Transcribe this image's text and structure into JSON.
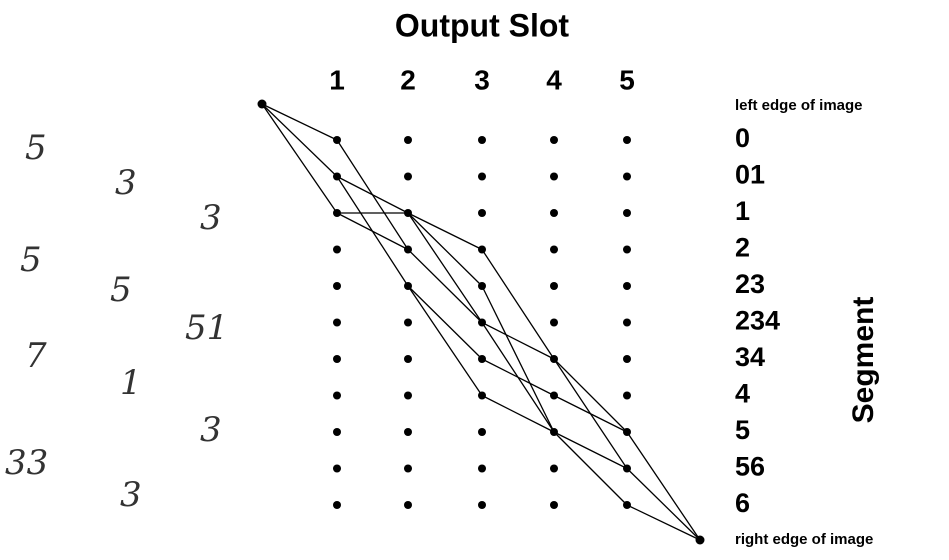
{
  "title": "Output Slot",
  "columns": [
    "1",
    "2",
    "3",
    "4",
    "5"
  ],
  "start_label": "left edge of image",
  "end_label": "right edge of image",
  "segments": [
    "0",
    "01",
    "1",
    "2",
    "23",
    "234",
    "34",
    "4",
    "5",
    "56",
    "6"
  ],
  "segments_axis_label": "Segment",
  "handwritten_samples": [
    "5",
    "3",
    "3",
    "5",
    "5",
    "51",
    "7",
    "1",
    "3",
    "33",
    "3"
  ]
}
